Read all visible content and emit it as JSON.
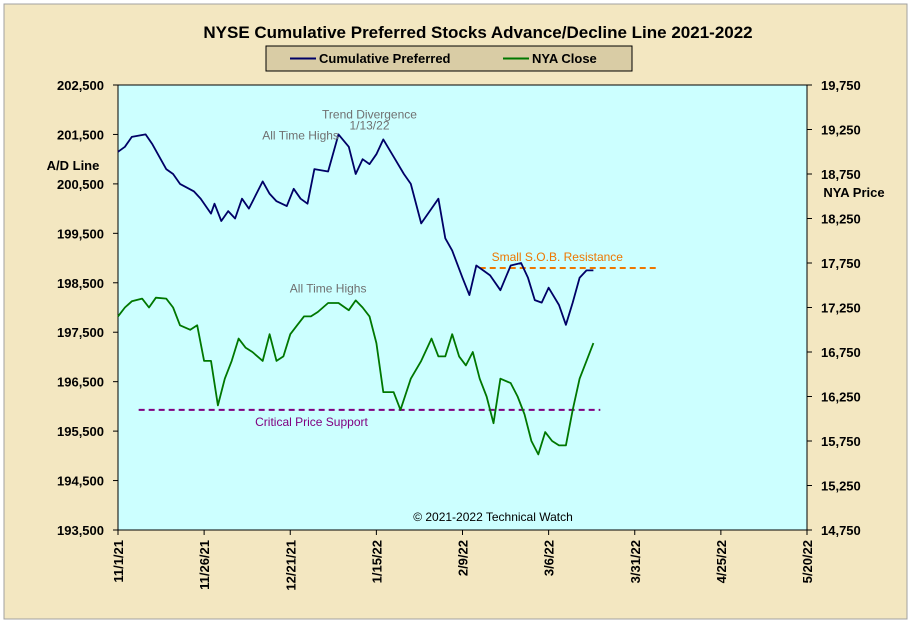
{
  "chart_data": {
    "type": "line",
    "title": "NYSE Cumulative  Preferred Stocks Advance/Decline  Line 2021-2022",
    "ylabel_left": "A/D Line",
    "ylabel_right": "NYA Price",
    "copyright": "© 2021-2022  Technical  Watch",
    "colors": {
      "outer_bg": "#f3e7c1",
      "plot_bg": "#ccffff",
      "legend_bg": "#d9cca5",
      "ad_line": "#000066",
      "nya_line": "#007700",
      "support_line": "#800080",
      "resistance_line": "#ee7700",
      "annotation_gray": "#707070"
    },
    "x_ticks": [
      "11/1/21",
      "11/26/21",
      "12/21/21",
      "1/15/22",
      "2/9/22",
      "3/6/22",
      "3/31/22",
      "4/25/22",
      "5/20/22"
    ],
    "x_range": [
      "2021-11-01",
      "2022-05-20"
    ],
    "y_left": {
      "range": [
        193500,
        202500
      ],
      "ticks": [
        193500,
        194500,
        195500,
        196500,
        197500,
        198500,
        199500,
        200500,
        201500,
        202500
      ],
      "tick_labels": [
        "193,500",
        "194,500",
        "195,500",
        "196,500",
        "197,500",
        "198,500",
        "199,500",
        "200,500",
        "201,500",
        "202,500"
      ]
    },
    "y_right": {
      "range": [
        14750,
        19750
      ],
      "ticks": [
        14750,
        15250,
        15750,
        16250,
        16750,
        17250,
        17750,
        18250,
        18750,
        19250,
        19750
      ],
      "tick_labels": [
        "14,750",
        "15,250",
        "15,750",
        "16,250",
        "16,750",
        "17,250",
        "17,750",
        "18,250",
        "18,750",
        "19,250",
        "19,750"
      ]
    },
    "series": [
      {
        "name": "Cumulative Preferred",
        "axis": "left",
        "x": [
          "2021-11-01",
          "2021-11-03",
          "2021-11-05",
          "2021-11-09",
          "2021-11-11",
          "2021-11-15",
          "2021-11-17",
          "2021-11-19",
          "2021-11-23",
          "2021-11-25",
          "2021-11-28",
          "2021-11-29",
          "2021-12-01",
          "2021-12-03",
          "2021-12-05",
          "2021-12-07",
          "2021-12-09",
          "2021-12-13",
          "2021-12-15",
          "2021-12-17",
          "2021-12-20",
          "2021-12-22",
          "2021-12-24",
          "2021-12-26",
          "2021-12-28",
          "2022-01-01",
          "2022-01-04",
          "2022-01-07",
          "2022-01-09",
          "2022-01-11",
          "2022-01-13",
          "2022-01-15",
          "2022-01-17",
          "2022-01-20",
          "2022-01-23",
          "2022-01-25",
          "2022-01-28",
          "2022-01-31",
          "2022-02-02",
          "2022-02-04",
          "2022-02-06",
          "2022-02-09",
          "2022-02-11",
          "2022-02-13",
          "2022-02-15",
          "2022-02-17",
          "2022-02-20",
          "2022-02-23",
          "2022-02-26",
          "2022-02-28",
          "2022-03-02",
          "2022-03-04",
          "2022-03-06",
          "2022-03-09",
          "2022-03-11",
          "2022-03-13",
          "2022-03-15",
          "2022-03-17",
          "2022-03-19"
        ],
        "values": [
          201150,
          201250,
          201450,
          201500,
          201300,
          200800,
          200700,
          200500,
          200350,
          200200,
          199900,
          200100,
          199750,
          199950,
          199800,
          200200,
          200000,
          200550,
          200300,
          200150,
          200050,
          200400,
          200200,
          200100,
          200800,
          200750,
          201500,
          201250,
          200700,
          201000,
          200900,
          201100,
          201400,
          201050,
          200700,
          200500,
          199700,
          200000,
          200200,
          199400,
          199150,
          198600,
          198250,
          198850,
          198750,
          198650,
          198350,
          198850,
          198900,
          198600,
          198150,
          198100,
          198400,
          198050,
          197650,
          198100,
          198600,
          198750,
          198750
        ]
      },
      {
        "name": "NYA Close",
        "axis": "right",
        "x": [
          "2021-11-01",
          "2021-11-03",
          "2021-11-05",
          "2021-11-08",
          "2021-11-10",
          "2021-11-12",
          "2021-11-15",
          "2021-11-17",
          "2021-11-19",
          "2021-11-22",
          "2021-11-24",
          "2021-11-26",
          "2021-11-28",
          "2021-11-30",
          "2021-12-02",
          "2021-12-04",
          "2021-12-06",
          "2021-12-08",
          "2021-12-10",
          "2021-12-13",
          "2021-12-15",
          "2021-12-17",
          "2021-12-19",
          "2021-12-21",
          "2021-12-23",
          "2021-12-25",
          "2021-12-27",
          "2021-12-29",
          "2022-01-01",
          "2022-01-04",
          "2022-01-07",
          "2022-01-09",
          "2022-01-11",
          "2022-01-13",
          "2022-01-15",
          "2022-01-17",
          "2022-01-20",
          "2022-01-22",
          "2022-01-25",
          "2022-01-28",
          "2022-01-31",
          "2022-02-02",
          "2022-02-04",
          "2022-02-06",
          "2022-02-08",
          "2022-02-10",
          "2022-02-12",
          "2022-02-14",
          "2022-02-16",
          "2022-02-18",
          "2022-02-20",
          "2022-02-23",
          "2022-02-25",
          "2022-02-27",
          "2022-03-01",
          "2022-03-03",
          "2022-03-05",
          "2022-03-07",
          "2022-03-09",
          "2022-03-11",
          "2022-03-13",
          "2022-03-15",
          "2022-03-17",
          "2022-03-19"
        ],
        "values": [
          17150,
          17250,
          17320,
          17350,
          17250,
          17360,
          17350,
          17250,
          17050,
          17000,
          17050,
          16650,
          16650,
          16150,
          16450,
          16650,
          16900,
          16800,
          16750,
          16650,
          16950,
          16650,
          16700,
          16950,
          17050,
          17150,
          17150,
          17200,
          17300,
          17300,
          17220,
          17330,
          17250,
          17150,
          16850,
          16300,
          16300,
          16100,
          16450,
          16650,
          16900,
          16700,
          16700,
          16950,
          16700,
          16600,
          16750,
          16450,
          16250,
          15950,
          16450,
          16400,
          16250,
          16050,
          15750,
          15600,
          15850,
          15750,
          15700,
          15700,
          16100,
          16450,
          16650,
          16850
        ]
      }
    ],
    "reference_lines": [
      {
        "label": "Critical Price Support",
        "axis": "right",
        "value": 16100,
        "x_start": "2021-11-07",
        "x_end": "2022-03-21",
        "style": "dashed"
      },
      {
        "label": "Small S.O.B. Resistance",
        "axis": "left",
        "value": 198800,
        "x_start": "2022-02-14",
        "x_end": "2022-04-07",
        "style": "dashed"
      }
    ],
    "annotations": [
      {
        "text": "All Time Highs",
        "series": "Cumulative Preferred",
        "x": "2021-12-24",
        "y": 201400
      },
      {
        "text": "Trend  Divergence",
        "series": "Cumulative Preferred",
        "x": "2022-01-13",
        "y": 201820
      },
      {
        "text": "1/13/22",
        "series": "Cumulative Preferred",
        "x": "2022-01-13",
        "y": 201600
      },
      {
        "text": "All Time Highs",
        "series": "NYA Close",
        "x": "2022-01-01",
        "y": 17420
      }
    ],
    "legend": {
      "placement": "top-center",
      "entries": [
        "Cumulative Preferred",
        "NYA Close"
      ]
    }
  }
}
